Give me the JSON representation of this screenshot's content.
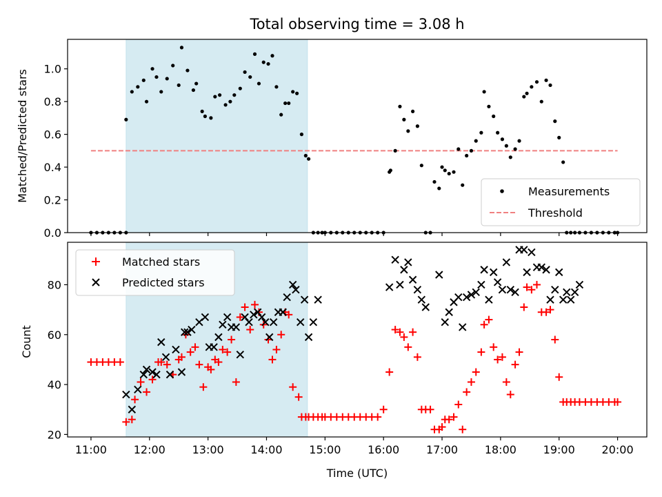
{
  "chart_data": [
    {
      "type": "scatter",
      "title": "Total observing time = 3.08 h",
      "ylabel": "Matched/Predicted stars",
      "ylim": [
        0,
        1.18
      ],
      "yticks": [
        0.0,
        0.2,
        0.4,
        0.6,
        0.8,
        1.0
      ],
      "ytick_labels": [
        "0.0",
        "0.2",
        "0.4",
        "0.6",
        "0.8",
        "1.0"
      ],
      "xlim_hours": [
        10.6,
        20.5
      ],
      "shaded_span_hours": [
        11.6,
        14.7
      ],
      "shade_color": "#add8e6",
      "legend_position": "lower right",
      "series": [
        {
          "name": "Measurements",
          "marker": "dot",
          "color": "#000000",
          "x": [
            11.0,
            11.1,
            11.2,
            11.3,
            11.4,
            11.5,
            11.6,
            11.6,
            11.7,
            11.8,
            11.9,
            11.95,
            12.05,
            12.12,
            12.2,
            12.3,
            12.4,
            12.5,
            12.55,
            12.65,
            12.75,
            12.8,
            12.9,
            12.95,
            13.05,
            13.12,
            13.2,
            13.3,
            13.38,
            13.45,
            13.55,
            13.63,
            13.72,
            13.8,
            13.87,
            13.95,
            14.03,
            14.1,
            14.17,
            14.25,
            14.32,
            14.38,
            14.45,
            14.52,
            14.6,
            14.67,
            14.72,
            14.8,
            14.88,
            14.95,
            15.0,
            15.1,
            15.2,
            15.3,
            15.4,
            15.5,
            15.6,
            15.7,
            15.8,
            15.9,
            16.0,
            16.1,
            16.12,
            16.2,
            16.28,
            16.35,
            16.42,
            16.5,
            16.58,
            16.65,
            16.72,
            16.8,
            16.87,
            16.95,
            17.0,
            17.05,
            17.12,
            17.2,
            17.28,
            17.35,
            17.42,
            17.5,
            17.58,
            17.67,
            17.72,
            17.8,
            17.88,
            17.95,
            18.03,
            18.1,
            18.17,
            18.25,
            18.32,
            18.4,
            18.45,
            18.53,
            18.62,
            18.7,
            18.78,
            18.85,
            18.93,
            19.0,
            19.07,
            19.13,
            19.2,
            19.27,
            19.35,
            19.45,
            19.55,
            19.65,
            19.75,
            19.85,
            19.95,
            20.0
          ],
          "y": [
            0,
            0,
            0,
            0,
            0,
            0,
            0,
            0.69,
            0.86,
            0.89,
            0.93,
            0.8,
            1.0,
            0.95,
            0.86,
            0.94,
            1.02,
            0.9,
            1.13,
            0.99,
            0.87,
            0.91,
            0.74,
            0.71,
            0.7,
            0.83,
            0.84,
            0.78,
            0.8,
            0.84,
            0.88,
            0.98,
            0.95,
            1.09,
            0.91,
            1.04,
            1.03,
            1.08,
            0.89,
            0.72,
            0.79,
            0.79,
            0.86,
            0.85,
            0.6,
            0.47,
            0.45,
            0,
            0,
            0,
            0,
            0,
            0,
            0,
            0,
            0,
            0,
            0,
            0,
            0,
            0,
            0.37,
            0.38,
            0.5,
            0.77,
            0.69,
            0.62,
            0.74,
            0.65,
            0.41,
            0,
            0,
            0.31,
            0.27,
            0.4,
            0.38,
            0.36,
            0.37,
            0.51,
            0.29,
            0.47,
            0.5,
            0.56,
            0.61,
            0.86,
            0.77,
            0.71,
            0.61,
            0.57,
            0.53,
            0.46,
            0.51,
            0.56,
            0.83,
            0.85,
            0.89,
            0.92,
            0.8,
            0.93,
            0.9,
            0.68,
            0.58,
            0.43,
            0,
            0,
            0,
            0,
            0,
            0,
            0,
            0,
            0,
            0,
            0
          ]
        },
        {
          "name": "Threshold",
          "marker": "dashed-line",
          "color": "#f08080",
          "x": [
            11.0,
            20.0
          ],
          "y": [
            0.5,
            0.5
          ]
        }
      ]
    },
    {
      "type": "scatter",
      "xlabel": "Time (UTC)",
      "ylabel": "Count",
      "ylim": [
        19,
        97
      ],
      "yticks": [
        20,
        40,
        60,
        80
      ],
      "ytick_labels": [
        "20",
        "40",
        "60",
        "80"
      ],
      "xlim_hours": [
        10.6,
        20.5
      ],
      "xticks_hours": [
        11,
        12,
        13,
        14,
        15,
        16,
        17,
        18,
        19,
        20
      ],
      "xtick_labels": [
        "11:00",
        "12:00",
        "13:00",
        "14:00",
        "15:00",
        "16:00",
        "17:00",
        "18:00",
        "19:00",
        "20:00"
      ],
      "shaded_span_hours": [
        11.6,
        14.7
      ],
      "shade_color": "#add8e6",
      "legend_position": "upper left",
      "series": [
        {
          "name": "Matched stars",
          "marker": "plus",
          "color": "#ff0000",
          "x": [
            11.0,
            11.1,
            11.2,
            11.3,
            11.4,
            11.5,
            11.6,
            11.7,
            11.75,
            11.85,
            11.95,
            12.05,
            12.15,
            12.2,
            12.3,
            12.4,
            12.5,
            12.55,
            12.62,
            12.7,
            12.78,
            12.85,
            12.92,
            13.0,
            13.05,
            13.12,
            13.18,
            13.25,
            13.33,
            13.4,
            13.48,
            13.55,
            13.63,
            13.72,
            13.8,
            13.87,
            13.95,
            14.03,
            14.1,
            14.17,
            14.25,
            14.32,
            14.38,
            14.45,
            14.55,
            14.6,
            14.67,
            14.72,
            14.8,
            14.88,
            14.95,
            15.0,
            15.1,
            15.2,
            15.3,
            15.4,
            15.5,
            15.6,
            15.7,
            15.8,
            15.9,
            16.0,
            16.1,
            16.2,
            16.28,
            16.35,
            16.42,
            16.5,
            16.58,
            16.65,
            16.72,
            16.8,
            16.87,
            16.95,
            17.0,
            17.05,
            17.12,
            17.2,
            17.28,
            17.35,
            17.42,
            17.5,
            17.58,
            17.67,
            17.72,
            17.8,
            17.88,
            17.95,
            18.03,
            18.1,
            18.17,
            18.25,
            18.32,
            18.4,
            18.45,
            18.53,
            18.62,
            18.7,
            18.78,
            18.85,
            18.93,
            19.0,
            19.07,
            19.13,
            19.2,
            19.27,
            19.35,
            19.45,
            19.55,
            19.65,
            19.75,
            19.85,
            19.95,
            20.0
          ],
          "y": [
            49,
            49,
            49,
            49,
            49,
            49,
            25,
            26,
            34,
            41,
            37,
            42,
            49,
            49,
            48,
            44,
            50,
            51,
            60,
            53,
            55,
            48,
            39,
            47,
            46,
            50,
            49,
            54,
            53,
            58,
            41,
            67,
            71,
            62,
            72,
            69,
            64,
            58,
            50,
            54,
            60,
            69,
            68,
            39,
            35,
            27,
            27,
            27,
            27,
            27,
            27,
            27,
            27,
            27,
            27,
            27,
            27,
            27,
            27,
            27,
            27,
            30,
            45,
            62,
            61,
            59,
            55,
            61,
            51,
            30,
            30,
            30,
            22,
            22,
            23,
            26,
            26,
            27,
            32,
            22,
            37,
            41,
            45,
            53,
            64,
            66,
            55,
            50,
            51,
            41,
            36,
            48,
            53,
            71,
            79,
            78,
            80,
            69,
            69,
            70,
            58,
            43,
            33,
            33,
            33,
            33,
            33,
            33,
            33,
            33,
            33,
            33,
            33,
            33
          ]
        },
        {
          "name": "Predicted stars",
          "marker": "x",
          "color": "#000000",
          "x": [
            11.6,
            11.7,
            11.8,
            11.9,
            11.95,
            12.05,
            12.12,
            12.2,
            12.28,
            12.35,
            12.45,
            12.55,
            12.6,
            12.65,
            12.72,
            12.85,
            12.95,
            13.02,
            13.1,
            13.18,
            13.25,
            13.33,
            13.4,
            13.48,
            13.55,
            13.63,
            13.7,
            13.78,
            13.85,
            13.92,
            13.98,
            14.05,
            14.12,
            14.2,
            14.28,
            14.35,
            14.45,
            14.5,
            14.58,
            14.65,
            14.72,
            14.8,
            14.88,
            16.1,
            16.2,
            16.28,
            16.35,
            16.42,
            16.5,
            16.58,
            16.65,
            16.72,
            16.95,
            17.05,
            17.12,
            17.2,
            17.28,
            17.35,
            17.42,
            17.5,
            17.58,
            17.67,
            17.72,
            17.8,
            17.88,
            17.95,
            18.03,
            18.1,
            18.17,
            18.25,
            18.32,
            18.4,
            18.45,
            18.53,
            18.62,
            18.7,
            18.78,
            18.85,
            18.93,
            19.0,
            19.07,
            19.13,
            19.2,
            19.27,
            19.35
          ],
          "y": [
            36,
            30,
            38,
            44,
            46,
            45,
            44,
            57,
            51,
            44,
            54,
            45,
            61,
            61,
            62,
            65,
            67,
            55,
            55,
            59,
            64,
            67,
            63,
            63,
            52,
            67,
            65,
            68,
            69,
            67,
            65,
            59,
            65,
            69,
            69,
            75,
            80,
            78,
            65,
            74,
            59,
            65,
            74,
            79,
            90,
            80,
            86,
            89,
            82,
            78,
            74,
            71,
            84,
            65,
            69,
            73,
            75,
            63,
            75,
            76,
            77,
            80,
            86,
            74,
            85,
            81,
            78,
            89,
            78,
            77,
            94,
            94,
            85,
            93,
            87,
            87,
            86,
            74,
            78,
            85,
            74,
            77,
            74,
            77,
            80
          ]
        }
      ]
    }
  ]
}
